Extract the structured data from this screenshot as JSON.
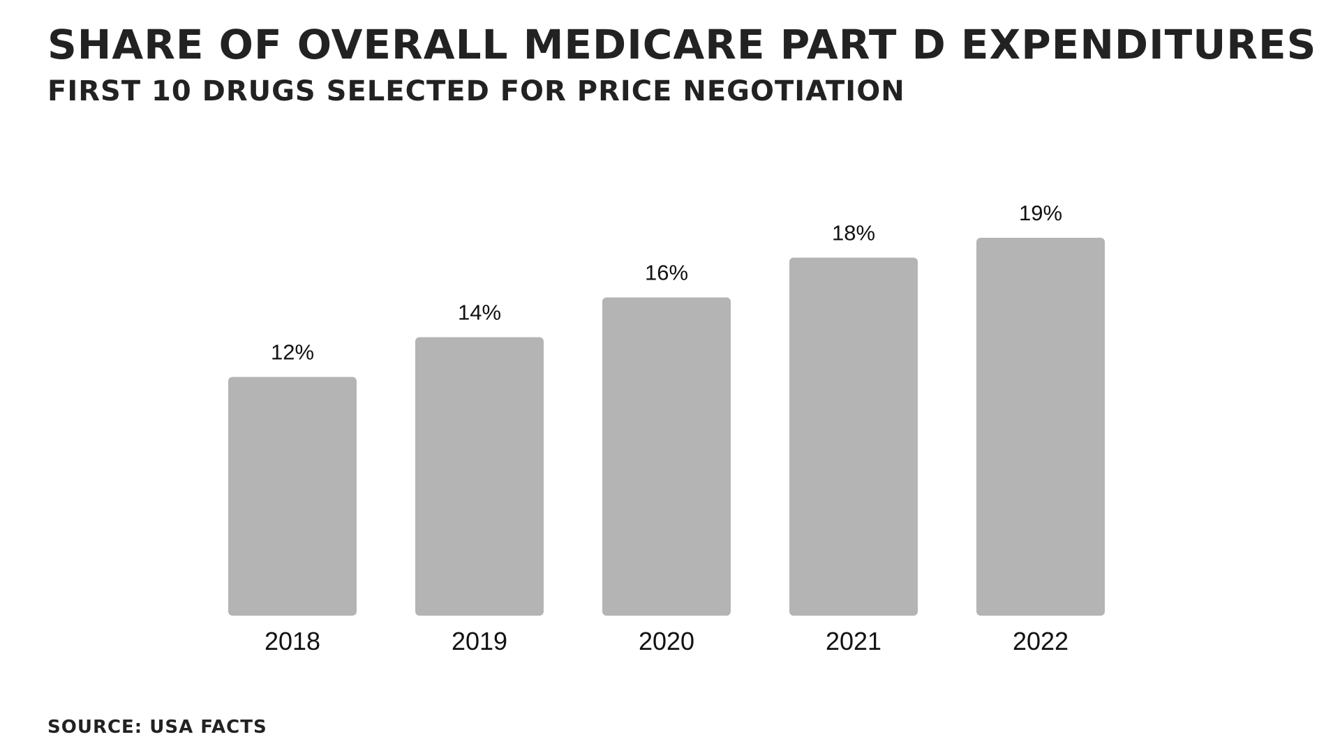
{
  "chart_data": {
    "type": "bar",
    "title": "Share of Overall Medicare Part D Expenditures",
    "subtitle": "First 10 Drugs Selected for Price Negotiation",
    "source": "Source: USA Facts",
    "categories": [
      "2018",
      "2019",
      "2020",
      "2021",
      "2022"
    ],
    "values": [
      12,
      14,
      16,
      18,
      19
    ],
    "data_labels": [
      "12%",
      "14%",
      "16%",
      "18%",
      "19%"
    ],
    "ylim": [
      0,
      19
    ],
    "grid": false,
    "legend": "none",
    "colors": {
      "bar": "#b5b4b5",
      "text": "#222222"
    }
  }
}
